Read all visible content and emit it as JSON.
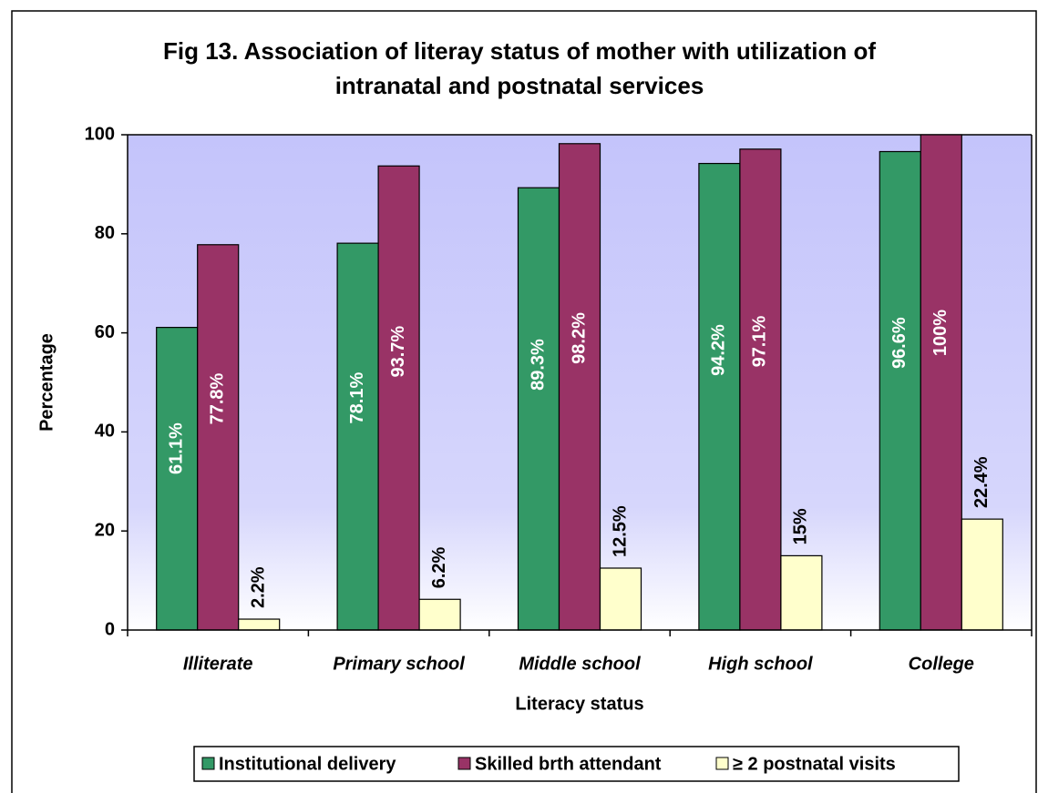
{
  "chart_data": {
    "type": "bar",
    "title": [
      "Fig 13. Association of literay status of mother with utilization of",
      "intranatal and postnatal services"
    ],
    "x_label": "Literacy status",
    "y_label": "Percentage",
    "categories": [
      "Illiterate",
      "Primary school",
      "Middle school",
      "High school",
      "College"
    ],
    "series": [
      {
        "name": "Institutional delivery",
        "color": "#339966",
        "values": [
          61.1,
          78.1,
          89.3,
          94.2,
          96.6
        ],
        "value_labels": [
          "61.1%",
          "78.1%",
          "89.3%",
          "94.2%",
          "96.6%"
        ]
      },
      {
        "name": "Skilled brth attendant",
        "color": "#993366",
        "values": [
          77.8,
          93.7,
          98.2,
          97.1,
          100
        ],
        "value_labels": [
          "77.8%",
          "93.7%",
          "98.2%",
          "97.1%",
          "100%"
        ]
      },
      {
        "name": "≥ 2 postnatal visits",
        "color": "#ffffcc",
        "values": [
          2.2,
          6.2,
          12.5,
          15,
          22.4
        ],
        "value_labels": [
          "2.2%",
          "6.2%",
          "12.5%",
          "15%",
          "22.4%"
        ]
      }
    ],
    "ylim": [
      0,
      100
    ],
    "yticks": [
      0,
      20,
      40,
      60,
      80,
      100
    ],
    "legend": "bottom"
  }
}
